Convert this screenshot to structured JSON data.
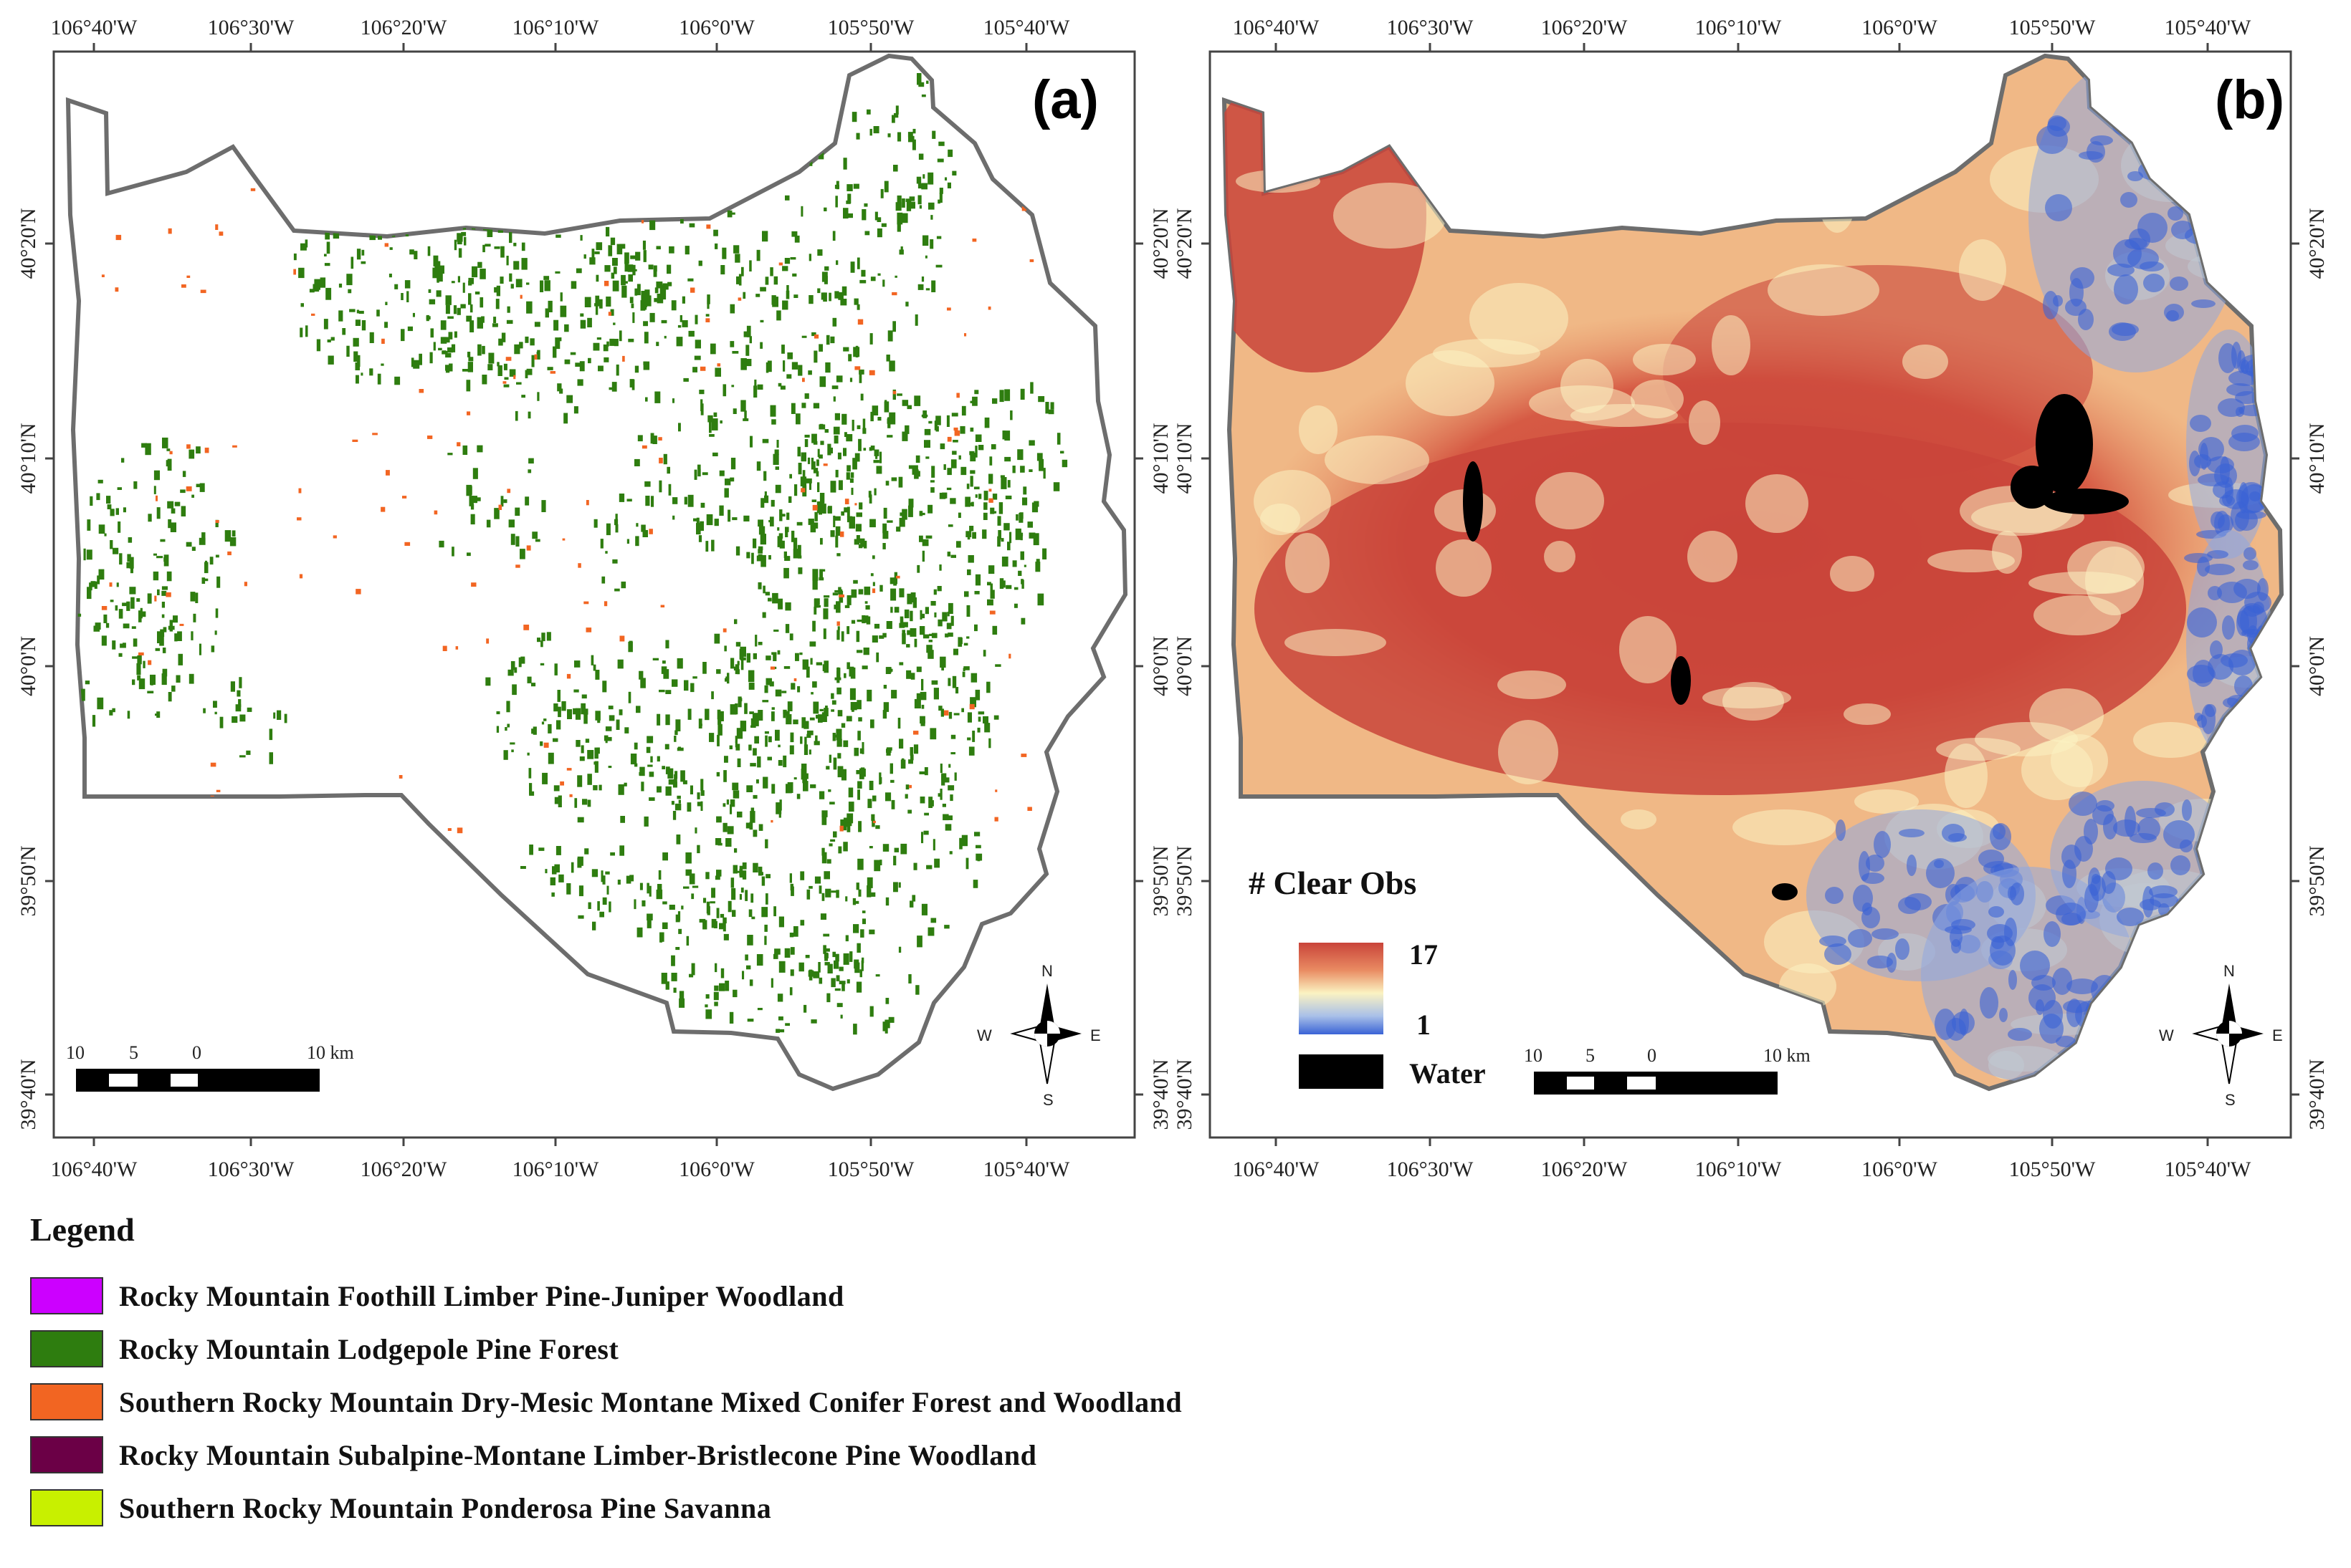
{
  "panels": [
    {
      "id": "a",
      "label": "(a)",
      "lon_ticks": [
        "106°40'W",
        "106°30'W",
        "106°20'W",
        "106°10'W",
        "106°0'W",
        "105°50'W",
        "105°40'W"
      ],
      "lat_ticks": [
        "40°20'N",
        "40°10'N",
        "40°0'N",
        "39°50'N",
        "39°40'N"
      ],
      "scale_bar": [
        "10",
        "5",
        "0",
        "10 km"
      ],
      "north_arrow": {
        "n": "N",
        "s": "S",
        "e": "E",
        "w": "W"
      }
    },
    {
      "id": "b",
      "label": "(b)",
      "lon_ticks": [
        "106°40'W",
        "106°30'W",
        "106°20'W",
        "106°10'W",
        "106°0'W",
        "105°50'W",
        "105°40'W"
      ],
      "lat_ticks": [
        "40°20'N",
        "40°10'N",
        "40°0'N",
        "39°50'N",
        "39°40'N"
      ],
      "scale_bar": [
        "10",
        "5",
        "0",
        "10 km"
      ],
      "north_arrow": {
        "n": "N",
        "s": "S",
        "e": "E",
        "w": "W"
      },
      "inset_legend": {
        "title": "# Clear Obs",
        "max": "17",
        "min": "1",
        "water": "Water",
        "colors": {
          "high": "#c9443a",
          "mid": "#fbf3c2",
          "low": "#3a63d6",
          "water": "#000000"
        }
      }
    }
  ],
  "legend": {
    "title": "Legend",
    "items": [
      {
        "label": "Rocky Mountain Foothill Limber Pine-Juniper Woodland",
        "color": "#cc00ff"
      },
      {
        "label": "Rocky Mountain Lodgepole Pine Forest",
        "color": "#2e7d0f"
      },
      {
        "label": "Southern Rocky Mountain Dry-Mesic Montane Mixed Conifer Forest and Woodland",
        "color": "#f26522"
      },
      {
        "label": "Rocky Mountain Subalpine-Montane Limber-Bristlecone Pine Woodland",
        "color": "#6b0046"
      },
      {
        "label": "Southern Rocky Mountain Ponderosa Pine Savanna",
        "color": "#c8f000"
      }
    ]
  }
}
